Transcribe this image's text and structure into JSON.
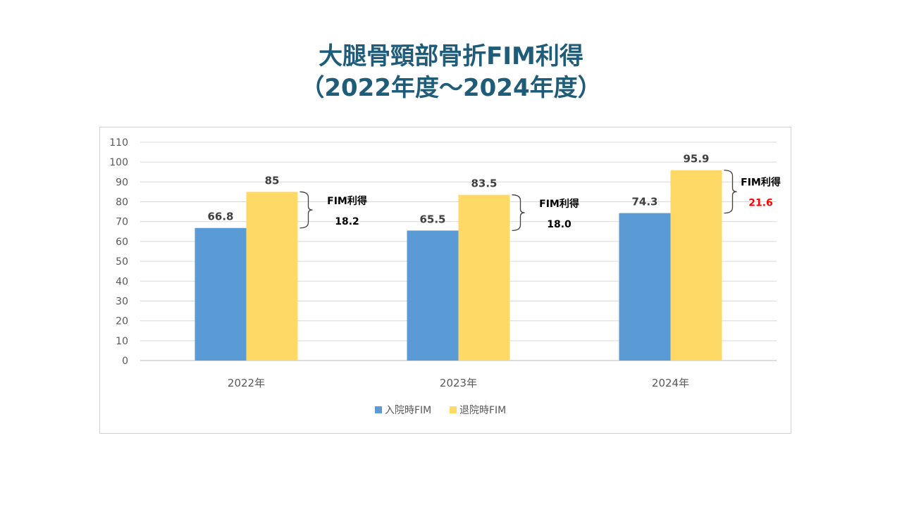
{
  "title": {
    "line1": "大腿骨頸部骨折FIM利得",
    "line2": "（2022年度～2024年度）"
  },
  "colors": {
    "title": "#1f5c7a",
    "admission": "#5b9bd5",
    "discharge": "#ffd966",
    "highlight": "#ff0000"
  },
  "chart_data": {
    "type": "bar",
    "categories": [
      "2022年",
      "2023年",
      "2024年"
    ],
    "series": [
      {
        "name": "入院時FIM",
        "values": [
          66.8,
          65.5,
          74.3
        ],
        "labels": [
          "66.8",
          "65.5",
          "74.3"
        ],
        "color": "#5b9bd5"
      },
      {
        "name": "退院時FIM",
        "values": [
          85,
          83.5,
          95.9
        ],
        "labels": [
          "85",
          "83.5",
          "95.9"
        ],
        "color": "#ffd966"
      }
    ],
    "ylim": [
      0,
      110
    ],
    "yticks": [
      "0",
      "10",
      "20",
      "30",
      "40",
      "50",
      "60",
      "70",
      "80",
      "90",
      "100",
      "110"
    ],
    "grid": true,
    "legend": "bottom",
    "annotations": [
      {
        "label": "FIM利得",
        "value": "18.2",
        "highlight": false
      },
      {
        "label": "FIM利得",
        "value": "18.0",
        "highlight": false
      },
      {
        "label": "FIM利得",
        "value": "21.6",
        "highlight": true
      }
    ]
  }
}
